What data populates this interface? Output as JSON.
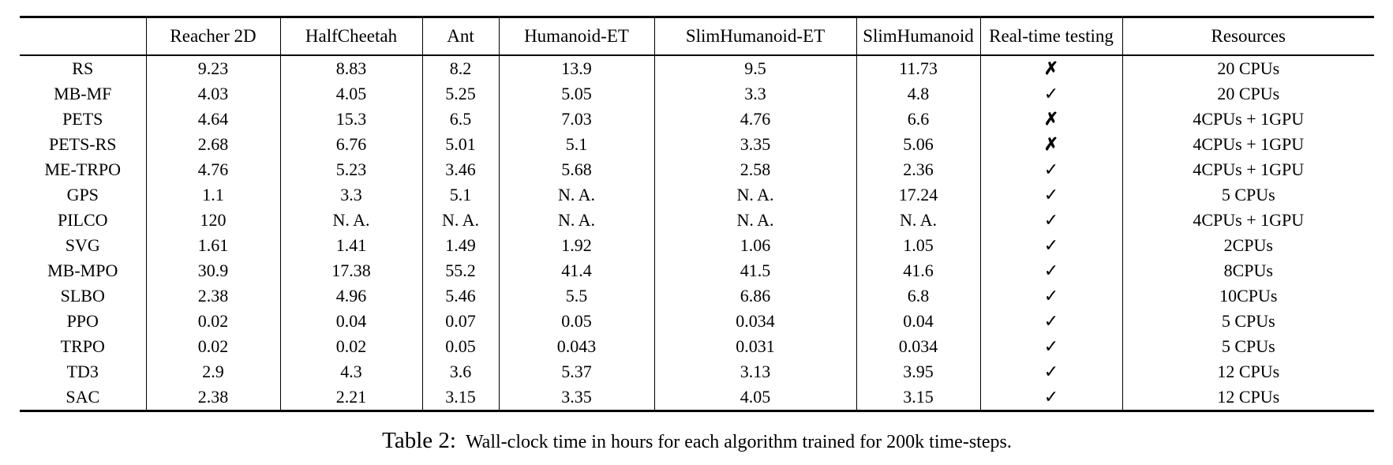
{
  "page": {
    "background_color": "#ffffff",
    "text_color": "#000000"
  },
  "table": {
    "columns": [
      "",
      "Reacher 2D",
      "HalfCheetah",
      "Ant",
      "Humanoid-ET",
      "SlimHumanoid-ET",
      "SlimHumanoid",
      "Real-time testing",
      "Resources"
    ],
    "icons": {
      "check": "✓",
      "cross": "✗"
    },
    "rows": [
      {
        "name": "RS",
        "values": [
          "9.23",
          "8.83",
          "8.2",
          "13.9",
          "9.5",
          "11.73"
        ],
        "realtime": "✗",
        "resources": "20 CPUs"
      },
      {
        "name": "MB-MF",
        "values": [
          "4.03",
          "4.05",
          "5.25",
          "5.05",
          "3.3",
          "4.8"
        ],
        "realtime": "✓",
        "resources": "20 CPUs"
      },
      {
        "name": "PETS",
        "values": [
          "4.64",
          "15.3",
          "6.5",
          "7.03",
          "4.76",
          "6.6"
        ],
        "realtime": "✗",
        "resources": "4CPUs + 1GPU"
      },
      {
        "name": "PETS-RS",
        "values": [
          "2.68",
          "6.76",
          "5.01",
          "5.1",
          "3.35",
          "5.06"
        ],
        "realtime": "✗",
        "resources": "4CPUs + 1GPU"
      },
      {
        "name": "ME-TRPO",
        "values": [
          "4.76",
          "5.23",
          "3.46",
          "5.68",
          "2.58",
          "2.36"
        ],
        "realtime": "✓",
        "resources": "4CPUs + 1GPU"
      },
      {
        "name": "GPS",
        "values": [
          "1.1",
          "3.3",
          "5.1",
          "N. A.",
          "N. A.",
          "17.24"
        ],
        "realtime": "✓",
        "resources": "5 CPUs"
      },
      {
        "name": "PILCO",
        "values": [
          "120",
          "N. A.",
          "N. A.",
          "N. A.",
          "N. A.",
          "N. A."
        ],
        "realtime": "✓",
        "resources": "4CPUs + 1GPU"
      },
      {
        "name": "SVG",
        "values": [
          "1.61",
          "1.41",
          "1.49",
          "1.92",
          "1.06",
          "1.05"
        ],
        "realtime": "✓",
        "resources": "2CPUs"
      },
      {
        "name": "MB-MPO",
        "values": [
          "30.9",
          "17.38",
          "55.2",
          "41.4",
          "41.5",
          "41.6"
        ],
        "realtime": "✓",
        "resources": "8CPUs"
      },
      {
        "name": "SLBO",
        "values": [
          "2.38",
          "4.96",
          "5.46",
          "5.5",
          "6.86",
          "6.8"
        ],
        "realtime": "✓",
        "resources": "10CPUs"
      },
      {
        "name": "PPO",
        "values": [
          "0.02",
          "0.04",
          "0.07",
          "0.05",
          "0.034",
          "0.04"
        ],
        "realtime": "✓",
        "resources": "5 CPUs"
      },
      {
        "name": "TRPO",
        "values": [
          "0.02",
          "0.02",
          "0.05",
          "0.043",
          "0.031",
          "0.034"
        ],
        "realtime": "✓",
        "resources": "5 CPUs"
      },
      {
        "name": "TD3",
        "values": [
          "2.9",
          "4.3",
          "3.6",
          "5.37",
          "3.13",
          "3.95"
        ],
        "realtime": "✓",
        "resources": "12 CPUs"
      },
      {
        "name": "SAC",
        "values": [
          "2.38",
          "2.21",
          "3.15",
          "3.35",
          "4.05",
          "3.15"
        ],
        "realtime": "✓",
        "resources": "12 CPUs"
      }
    ]
  },
  "caption": {
    "label": "Table 2:",
    "text": "Wall-clock time in hours for each algorithm trained for 200k time-steps."
  },
  "chart_data": {
    "type": "table",
    "title": "Wall-clock time in hours for each algorithm trained for 200k time-steps",
    "categories": [
      "Reacher 2D",
      "HalfCheetah",
      "Ant",
      "Humanoid-ET",
      "SlimHumanoid-ET",
      "SlimHumanoid"
    ],
    "series": [
      {
        "name": "RS",
        "values": [
          9.23,
          8.83,
          8.2,
          13.9,
          9.5,
          11.73
        ],
        "real_time_testing": false,
        "resources": "20 CPUs"
      },
      {
        "name": "MB-MF",
        "values": [
          4.03,
          4.05,
          5.25,
          5.05,
          3.3,
          4.8
        ],
        "real_time_testing": true,
        "resources": "20 CPUs"
      },
      {
        "name": "PETS",
        "values": [
          4.64,
          15.3,
          6.5,
          7.03,
          4.76,
          6.6
        ],
        "real_time_testing": false,
        "resources": "4CPUs + 1GPU"
      },
      {
        "name": "PETS-RS",
        "values": [
          2.68,
          6.76,
          5.01,
          5.1,
          3.35,
          5.06
        ],
        "real_time_testing": false,
        "resources": "4CPUs + 1GPU"
      },
      {
        "name": "ME-TRPO",
        "values": [
          4.76,
          5.23,
          3.46,
          5.68,
          2.58,
          2.36
        ],
        "real_time_testing": true,
        "resources": "4CPUs + 1GPU"
      },
      {
        "name": "GPS",
        "values": [
          1.1,
          3.3,
          5.1,
          null,
          null,
          17.24
        ],
        "real_time_testing": true,
        "resources": "5 CPUs"
      },
      {
        "name": "PILCO",
        "values": [
          120,
          null,
          null,
          null,
          null,
          null
        ],
        "real_time_testing": true,
        "resources": "4CPUs + 1GPU"
      },
      {
        "name": "SVG",
        "values": [
          1.61,
          1.41,
          1.49,
          1.92,
          1.06,
          1.05
        ],
        "real_time_testing": true,
        "resources": "2CPUs"
      },
      {
        "name": "MB-MPO",
        "values": [
          30.9,
          17.38,
          55.2,
          41.4,
          41.5,
          41.6
        ],
        "real_time_testing": true,
        "resources": "8CPUs"
      },
      {
        "name": "SLBO",
        "values": [
          2.38,
          4.96,
          5.46,
          5.5,
          6.86,
          6.8
        ],
        "real_time_testing": true,
        "resources": "10CPUs"
      },
      {
        "name": "PPO",
        "values": [
          0.02,
          0.04,
          0.07,
          0.05,
          0.034,
          0.04
        ],
        "real_time_testing": true,
        "resources": "5 CPUs"
      },
      {
        "name": "TRPO",
        "values": [
          0.02,
          0.02,
          0.05,
          0.043,
          0.031,
          0.034
        ],
        "real_time_testing": true,
        "resources": "5 CPUs"
      },
      {
        "name": "TD3",
        "values": [
          2.9,
          4.3,
          3.6,
          5.37,
          3.13,
          3.95
        ],
        "real_time_testing": true,
        "resources": "12 CPUs"
      },
      {
        "name": "SAC",
        "values": [
          2.38,
          2.21,
          3.15,
          3.35,
          4.05,
          3.15
        ],
        "real_time_testing": true,
        "resources": "12 CPUs"
      }
    ]
  }
}
